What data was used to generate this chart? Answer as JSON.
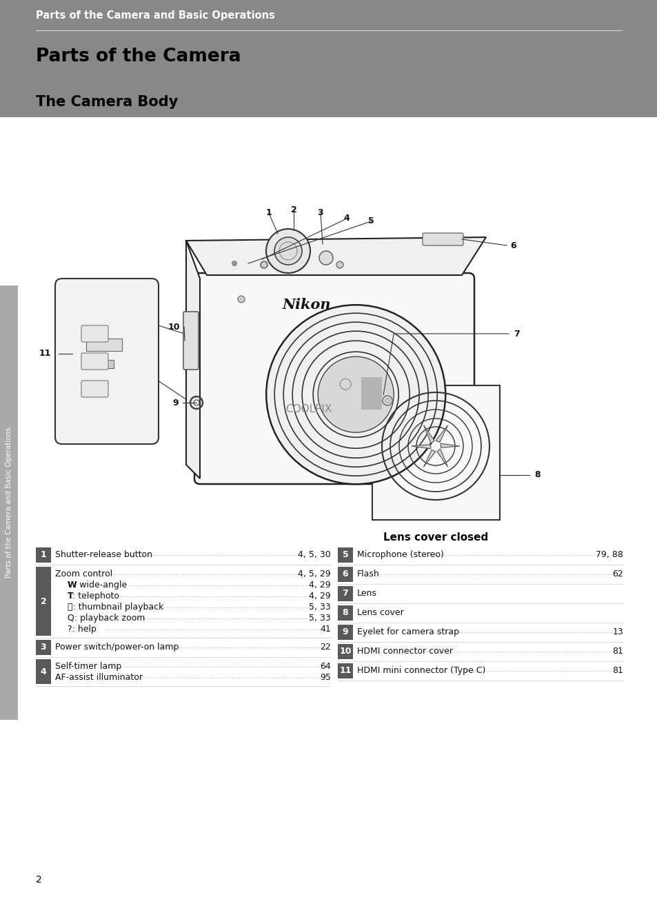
{
  "header_bg_color": "#888888",
  "header_text": "Parts of the Camera and Basic Operations",
  "header_text_color": "#ffffff",
  "header_font_size": 10.5,
  "title_text": "Parts of the Camera",
  "title_font_size": 19,
  "subtitle_text": "The Camera Body",
  "subtitle_font_size": 15,
  "bg_color": "#ffffff",
  "page_bg_color": "#cccccc",
  "sidebar_bg_color": "#aaaaaa",
  "sidebar_text": "Parts of the Camera and Basic Operations",
  "sidebar_text_color": "#ffffff",
  "sidebar_font_size": 7.5,
  "lens_cover_label": "Lens cover closed",
  "lens_cover_font_size": 11,
  "page_number": "2",
  "page_number_font_size": 10,
  "item_number_bg": "#595959",
  "item_number_color": "#ffffff",
  "item_font_size": 9.0,
  "items_left": [
    {
      "number": "1",
      "lines": [
        {
          "text": "Shutter-release button",
          "dots": true,
          "page": "4, 5, 30",
          "indent": 0
        }
      ]
    },
    {
      "number": "2",
      "lines": [
        {
          "text": "Zoom control",
          "dots": true,
          "page": "4, 5, 29",
          "indent": 0
        },
        {
          "text": "W: wide-angle ",
          "dots": true,
          "page": "4, 29",
          "indent": 1,
          "bold_w": true
        },
        {
          "text": "T: telephoto",
          "dots": true,
          "page": "4, 29",
          "indent": 1,
          "bold_t": true
        },
        {
          "text": "⬛: thumbnail playback",
          "dots": true,
          "page": "5, 33",
          "indent": 1
        },
        {
          "text": "Q: playback zoom ",
          "dots": true,
          "page": "5, 33",
          "indent": 1
        },
        {
          "text": "?: help ",
          "dots": true,
          "page": "41",
          "indent": 1
        }
      ]
    },
    {
      "number": "3",
      "lines": [
        {
          "text": "Power switch/power-on lamp",
          "dots": true,
          "page": "22",
          "indent": 0
        }
      ]
    },
    {
      "number": "4",
      "lines": [
        {
          "text": "Self-timer lamp ",
          "dots": true,
          "page": "64",
          "indent": 0
        },
        {
          "text": "AF-assist illuminator",
          "dots": true,
          "page": "95",
          "indent": 0
        }
      ]
    }
  ],
  "items_right": [
    {
      "number": "5",
      "lines": [
        {
          "text": "Microphone (stereo) ",
          "dots": true,
          "page": "79, 88",
          "indent": 0
        }
      ]
    },
    {
      "number": "6",
      "lines": [
        {
          "text": "Flash",
          "dots": true,
          "page": "62",
          "indent": 0
        }
      ]
    },
    {
      "number": "7",
      "lines": [
        {
          "text": "Lens",
          "dots": false,
          "page": "",
          "indent": 0
        }
      ]
    },
    {
      "number": "8",
      "lines": [
        {
          "text": "Lens cover",
          "dots": false,
          "page": "",
          "indent": 0
        }
      ]
    },
    {
      "number": "9",
      "lines": [
        {
          "text": "Eyelet for camera strap",
          "dots": true,
          "page": "13",
          "indent": 0
        }
      ]
    },
    {
      "number": "10",
      "lines": [
        {
          "text": "HDMI connector cover",
          "dots": true,
          "page": "81",
          "indent": 0
        }
      ]
    },
    {
      "number": "11",
      "lines": [
        {
          "text": "HDMI mini connector (Type C) ",
          "dots": true,
          "page": "81",
          "indent": 0
        }
      ]
    }
  ]
}
